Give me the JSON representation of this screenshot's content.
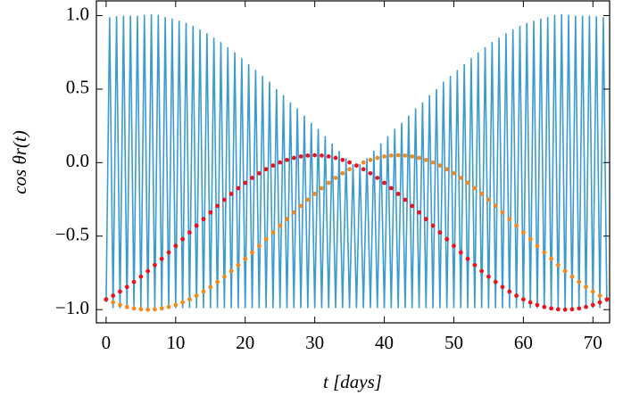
{
  "chart_data": {
    "type": "line",
    "xlabel": "t [days]",
    "ylabel": "cos θr(t)",
    "xlim": [
      -1.4,
      72.4
    ],
    "ylim": [
      -1.09,
      1.1
    ],
    "xticks": [
      0,
      10,
      20,
      30,
      40,
      50,
      60,
      70
    ],
    "yticks": [
      {
        "value": -1.0,
        "label": "−1.0"
      },
      {
        "value": -0.5,
        "label": "−0.5"
      },
      {
        "value": 0.0,
        "label": "0.0"
      },
      {
        "value": 0.5,
        "label": "0.5"
      },
      {
        "value": 1.0,
        "label": "1.0"
      }
    ],
    "series": [
      {
        "color": "#3b9bd0",
        "style": "line",
        "x": [
          0,
          0.5,
          1,
          1.5,
          2,
          2.5,
          3,
          3.5,
          4,
          4.5,
          5,
          5.5,
          6,
          6.5,
          7,
          7.5,
          8,
          8.5,
          9,
          9.5,
          10,
          10.5,
          11,
          11.5,
          12,
          12.5,
          13,
          13.5,
          14,
          14.5,
          15,
          15.5,
          16,
          16.5,
          17,
          17.5,
          18,
          18.5,
          19,
          19.5,
          20,
          20.5,
          21,
          21.5,
          22,
          22.5,
          23,
          23.5,
          24,
          24.5,
          25,
          25.5,
          26,
          26.5,
          27,
          27.5,
          28,
          28.5,
          29,
          29.5,
          30,
          30.5,
          31,
          31.5,
          32,
          32.5,
          33,
          33.5,
          34,
          34.5,
          35,
          35.5,
          36,
          36.5,
          37,
          37.5,
          38,
          38.5,
          39,
          39.5,
          40,
          40.5,
          41,
          41.5,
          42,
          42.5,
          43,
          43.5,
          44,
          44.5,
          45,
          45.5,
          46,
          46.5,
          47,
          47.5,
          48,
          48.5,
          49,
          49.5,
          50,
          50.5,
          51,
          51.5,
          52,
          52.5,
          53,
          53.5,
          54,
          54.5,
          55,
          55.5,
          56,
          56.5,
          57,
          57.5,
          58,
          58.5,
          59,
          59.5,
          60,
          60.5,
          61,
          61.5,
          62,
          62.5,
          63,
          63.5,
          64,
          64.5,
          65,
          65.5,
          66,
          66.5,
          67,
          67.5,
          68,
          68.5,
          69,
          69.5,
          70,
          70.5,
          71,
          71.5,
          72
        ],
        "values": [
          -0.95,
          0.99,
          -0.99,
          0.995,
          -0.99,
          1.0,
          -0.99,
          1.0,
          -0.99,
          1.0,
          -0.99,
          1.005,
          -0.99,
          1.01,
          -0.99,
          1.005,
          -0.99,
          0.99,
          -0.99,
          0.98,
          -0.99,
          0.965,
          -0.99,
          0.95,
          -0.99,
          0.93,
          -0.99,
          0.905,
          -0.99,
          0.88,
          -0.99,
          0.85,
          -0.99,
          0.82,
          -0.99,
          0.785,
          -0.99,
          0.75,
          -0.99,
          0.71,
          -0.99,
          0.67,
          -0.99,
          0.63,
          -0.99,
          0.59,
          -0.99,
          0.55,
          -0.99,
          0.5,
          -0.99,
          0.46,
          -0.99,
          0.41,
          -0.99,
          0.37,
          -0.99,
          0.32,
          -0.99,
          0.27,
          -0.99,
          0.23,
          -0.99,
          0.18,
          -0.99,
          0.13,
          -0.99,
          0.08,
          -0.99,
          0.03,
          -0.99,
          -0.01,
          -0.99,
          -0.01,
          -0.99,
          0.03,
          -0.99,
          0.08,
          -0.99,
          0.13,
          -0.99,
          0.18,
          -0.99,
          0.23,
          -0.99,
          0.27,
          -0.99,
          0.32,
          -0.99,
          0.37,
          -0.99,
          0.41,
          -0.99,
          0.46,
          -0.99,
          0.5,
          -0.99,
          0.55,
          -0.99,
          0.59,
          -0.99,
          0.63,
          -0.99,
          0.67,
          -0.99,
          0.71,
          -0.99,
          0.75,
          -0.99,
          0.785,
          -0.99,
          0.82,
          -0.99,
          0.85,
          -0.99,
          0.88,
          -0.99,
          0.905,
          -0.99,
          0.93,
          -0.99,
          0.95,
          -0.99,
          0.965,
          -0.99,
          0.98,
          -0.99,
          0.99,
          -0.99,
          1.005,
          -0.99,
          1.01,
          -0.99,
          1.005,
          -0.99,
          1.0,
          -0.99,
          1.0,
          -0.99,
          1.0,
          -0.99,
          0.995,
          -0.99,
          0.99,
          -0.95
        ]
      },
      {
        "color": "#f28a1c",
        "style": "scatter",
        "x": [
          0,
          1,
          2,
          3,
          4,
          5,
          6,
          7,
          8,
          9,
          10,
          11,
          12,
          13,
          14,
          15,
          16,
          17,
          18,
          19,
          20,
          21,
          22,
          23,
          24,
          25,
          26,
          27,
          28,
          29,
          30,
          31,
          32,
          33,
          34,
          35,
          36,
          37,
          38,
          39,
          40,
          41,
          42,
          43,
          44,
          45,
          46,
          47,
          48,
          49,
          50,
          51,
          52,
          53,
          54,
          55,
          56,
          57,
          58,
          59,
          60,
          61,
          62,
          63,
          64,
          65,
          66,
          67,
          68,
          69,
          70,
          71,
          72
        ],
        "values": [
          -0.93,
          -0.951,
          -0.968,
          -0.982,
          -0.992,
          -0.998,
          -1.0,
          -0.998,
          -0.992,
          -0.982,
          -0.968,
          -0.951,
          -0.93,
          -0.905,
          -0.877,
          -0.846,
          -0.812,
          -0.776,
          -0.738,
          -0.697,
          -0.655,
          -0.611,
          -0.566,
          -0.521,
          -0.475,
          -0.429,
          -0.384,
          -0.339,
          -0.295,
          -0.253,
          -0.213,
          -0.174,
          -0.138,
          -0.104,
          -0.073,
          -0.045,
          -0.02,
          0.001,
          0.018,
          0.032,
          0.042,
          0.048,
          0.05,
          0.048,
          0.042,
          0.032,
          0.018,
          0.001,
          -0.02,
          -0.045,
          -0.073,
          -0.104,
          -0.138,
          -0.174,
          -0.213,
          -0.253,
          -0.295,
          -0.339,
          -0.384,
          -0.429,
          -0.475,
          -0.521,
          -0.566,
          -0.611,
          -0.655,
          -0.697,
          -0.738,
          -0.776,
          -0.812,
          -0.846,
          -0.877,
          -0.905,
          -0.93
        ]
      },
      {
        "color": "#e8141e",
        "style": "scatter",
        "x": [
          0,
          1,
          2,
          3,
          4,
          5,
          6,
          7,
          8,
          9,
          10,
          11,
          12,
          13,
          14,
          15,
          16,
          17,
          18,
          19,
          20,
          21,
          22,
          23,
          24,
          25,
          26,
          27,
          28,
          29,
          30,
          31,
          32,
          33,
          34,
          35,
          36,
          37,
          38,
          39,
          40,
          41,
          42,
          43,
          44,
          45,
          46,
          47,
          48,
          49,
          50,
          51,
          52,
          53,
          54,
          55,
          56,
          57,
          58,
          59,
          60,
          61,
          62,
          63,
          64,
          65,
          66,
          67,
          68,
          69,
          70,
          71,
          72
        ],
        "values": [
          -0.93,
          -0.905,
          -0.877,
          -0.846,
          -0.812,
          -0.776,
          -0.738,
          -0.697,
          -0.655,
          -0.611,
          -0.566,
          -0.521,
          -0.475,
          -0.429,
          -0.384,
          -0.339,
          -0.295,
          -0.253,
          -0.213,
          -0.174,
          -0.138,
          -0.104,
          -0.073,
          -0.045,
          -0.02,
          0.001,
          0.018,
          0.032,
          0.042,
          0.048,
          0.05,
          0.048,
          0.042,
          0.032,
          0.018,
          0.001,
          -0.02,
          -0.045,
          -0.073,
          -0.104,
          -0.138,
          -0.174,
          -0.213,
          -0.253,
          -0.295,
          -0.339,
          -0.384,
          -0.429,
          -0.475,
          -0.521,
          -0.566,
          -0.611,
          -0.655,
          -0.697,
          -0.738,
          -0.776,
          -0.812,
          -0.846,
          -0.877,
          -0.905,
          -0.93,
          -0.951,
          -0.968,
          -0.982,
          -0.992,
          -0.998,
          -1.0,
          -0.998,
          -0.992,
          -0.982,
          -0.968,
          -0.951,
          -0.93
        ]
      }
    ]
  }
}
